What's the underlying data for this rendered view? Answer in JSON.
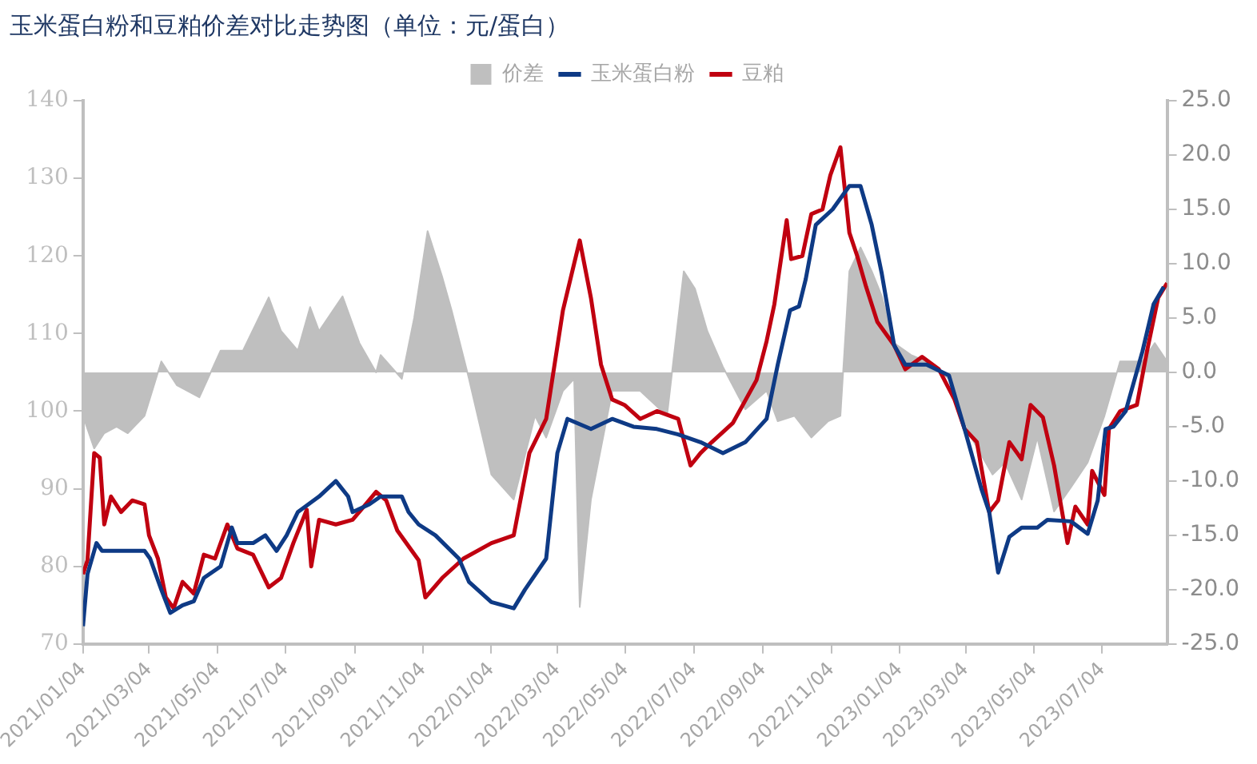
{
  "chart_data": {
    "type": "line",
    "title": "玉米蛋白粉和豆粕价差对比走势图（单位：元/蛋白）",
    "legend": "top",
    "grid": false,
    "marker": "none",
    "line_style": "solid",
    "xlim": [
      "2021-01-04",
      "2023-08-31"
    ],
    "xticks": [
      {
        "value": "2021-01-04",
        "label": "2021/01/04"
      },
      {
        "value": "2021-03-04",
        "label": "2021/03/04"
      },
      {
        "value": "2021-05-04",
        "label": "2021/05/04"
      },
      {
        "value": "2021-07-04",
        "label": "2021/07/04"
      },
      {
        "value": "2021-09-04",
        "label": "2021/09/04"
      },
      {
        "value": "2021-11-04",
        "label": "2021/11/04"
      },
      {
        "value": "2022-01-04",
        "label": "2022/01/04"
      },
      {
        "value": "2022-03-04",
        "label": "2022/03/04"
      },
      {
        "value": "2022-05-04",
        "label": "2022/05/04"
      },
      {
        "value": "2022-07-04",
        "label": "2022/07/04"
      },
      {
        "value": "2022-09-04",
        "label": "2022/09/04"
      },
      {
        "value": "2022-11-04",
        "label": "2022/11/04"
      },
      {
        "value": "2023-01-04",
        "label": "2023/01/04"
      },
      {
        "value": "2023-03-04",
        "label": "2023/03/04"
      },
      {
        "value": "2023-05-04",
        "label": "2023/05/04"
      },
      {
        "value": "2023-07-04",
        "label": "2023/07/04"
      }
    ],
    "ylim": [
      70,
      140
    ],
    "yticks": [
      70,
      80,
      90,
      100,
      110,
      120,
      130,
      140
    ],
    "y2lim": [
      -25,
      25
    ],
    "y2ticks": [
      {
        "value": -25,
        "label": "-25.0"
      },
      {
        "value": -20,
        "label": "-20.0"
      },
      {
        "value": -15,
        "label": "-15.0"
      },
      {
        "value": -10,
        "label": "-10.0"
      },
      {
        "value": -5,
        "label": "-5.0"
      },
      {
        "value": 0,
        "label": "0.0"
      },
      {
        "value": 5,
        "label": "5.0"
      },
      {
        "value": 10,
        "label": "10.0"
      },
      {
        "value": 15,
        "label": "15.0"
      },
      {
        "value": 20,
        "label": "20.0"
      },
      {
        "value": 25,
        "label": "25.0"
      }
    ],
    "series": [
      {
        "name": "价差",
        "type": "area",
        "axis": "y2",
        "color": "#bfbfbf",
        "x": [
          "2021-01-04",
          "2021-01-14",
          "2021-01-23",
          "2021-02-03",
          "2021-02-13",
          "2021-02-28",
          "2021-03-15",
          "2021-03-29",
          "2021-04-18",
          "2021-05-07",
          "2021-05-27",
          "2021-06-19",
          "2021-06-30",
          "2021-07-15",
          "2021-07-26",
          "2021-08-03",
          "2021-08-24",
          "2021-09-08",
          "2021-09-23",
          "2021-09-27",
          "2021-10-16",
          "2021-10-27",
          "2021-11-08",
          "2021-11-21",
          "2021-11-30",
          "2021-12-15",
          "2022-01-04",
          "2022-01-24",
          "2022-02-12",
          "2022-02-22",
          "2022-03-09",
          "2022-03-19",
          "2022-03-24",
          "2022-04-03",
          "2022-04-22",
          "2022-05-17",
          "2022-06-10",
          "2022-06-25",
          "2022-07-05",
          "2022-07-16",
          "2022-07-30",
          "2022-08-19",
          "2022-09-07",
          "2022-09-17",
          "2022-10-02",
          "2022-10-17",
          "2022-11-01",
          "2022-11-12",
          "2022-11-20",
          "2022-11-30",
          "2022-12-10",
          "2022-12-19",
          "2022-12-30",
          "2023-01-14",
          "2023-01-28",
          "2023-02-17",
          "2023-03-09",
          "2023-03-28",
          "2023-04-08",
          "2023-04-23",
          "2023-05-07",
          "2023-05-22",
          "2023-06-06",
          "2023-06-21",
          "2023-07-06",
          "2023-07-20",
          "2023-08-09",
          "2023-08-20",
          "2023-08-31"
        ],
        "values": [
          -4,
          -7,
          -5.6,
          -5,
          -5.6,
          -4,
          1,
          -1.2,
          -2.3,
          2,
          2,
          6.9,
          3.8,
          2,
          6,
          3.8,
          7,
          2.7,
          0,
          1.6,
          -0.6,
          5,
          13,
          8.8,
          5.5,
          -0.6,
          -9.4,
          -11.7,
          -4,
          -6,
          -1.7,
          -0.6,
          -21.6,
          -11.7,
          -1.7,
          -1.7,
          -4,
          9.3,
          7.7,
          3.8,
          0.5,
          -3.4,
          -1.7,
          -4.5,
          -4,
          -6,
          -4.5,
          -4,
          9.3,
          11.5,
          9.3,
          7,
          2.7,
          1.6,
          1,
          -0.6,
          -6,
          -9.4,
          -8.3,
          -11.7,
          -6,
          -12.8,
          -10.6,
          -8.3,
          -4,
          1,
          1,
          2.7,
          1
        ]
      },
      {
        "name": "玉米蛋白粉",
        "color": "#0e3a85",
        "x": [
          "2021-01-04",
          "2021-01-08",
          "2021-01-16",
          "2021-01-21",
          "2021-02-28",
          "2021-03-05",
          "2021-03-15",
          "2021-03-23",
          "2021-04-03",
          "2021-04-13",
          "2021-04-22",
          "2021-05-07",
          "2021-05-17",
          "2021-05-22",
          "2021-06-05",
          "2021-06-16",
          "2021-06-26",
          "2021-07-05",
          "2021-07-15",
          "2021-08-03",
          "2021-08-18",
          "2021-08-29",
          "2021-09-02",
          "2021-09-17",
          "2021-09-27",
          "2021-10-16",
          "2021-10-22",
          "2021-10-31",
          "2021-11-15",
          "2021-12-06",
          "2021-12-15",
          "2022-01-04",
          "2022-01-24",
          "2022-02-03",
          "2022-02-22",
          "2022-03-04",
          "2022-03-13",
          "2022-04-03",
          "2022-04-22",
          "2022-05-11",
          "2022-06-01",
          "2022-06-20",
          "2022-07-10",
          "2022-07-30",
          "2022-08-19",
          "2022-09-07",
          "2022-09-17",
          "2022-09-28",
          "2022-10-06",
          "2022-10-12",
          "2022-10-21",
          "2022-11-05",
          "2022-11-15",
          "2022-11-20",
          "2022-11-30",
          "2022-12-10",
          "2022-12-19",
          "2022-12-30",
          "2023-01-09",
          "2023-01-28",
          "2023-02-17",
          "2023-03-03",
          "2023-03-18",
          "2023-03-25",
          "2023-04-02",
          "2023-04-12",
          "2023-04-23",
          "2023-05-07",
          "2023-05-16",
          "2023-06-06",
          "2023-06-21",
          "2023-06-30",
          "2023-07-07",
          "2023-07-14",
          "2023-07-25",
          "2023-08-09",
          "2023-08-19",
          "2023-08-28"
        ],
        "values": [
          72.3,
          79,
          83,
          82,
          82,
          81,
          77,
          74,
          75,
          75.5,
          78.5,
          80,
          85,
          83,
          83,
          84,
          82,
          84,
          87,
          89,
          91,
          89,
          87,
          88,
          89,
          89,
          87,
          85.4,
          84,
          81,
          78,
          75.4,
          74.6,
          77,
          81,
          94.6,
          99,
          97.7,
          99,
          98,
          97.7,
          97,
          96,
          94.6,
          96,
          99,
          106,
          113,
          113.5,
          117,
          124,
          126,
          128,
          129,
          129,
          124,
          117.7,
          108.5,
          106,
          106,
          104.6,
          97.7,
          90,
          87,
          79.2,
          83.8,
          85,
          85,
          86,
          85.8,
          84.2,
          88.5,
          97.7,
          98,
          100,
          107.7,
          113.8,
          116
        ]
      },
      {
        "name": "豆粕",
        "color": "#c00010",
        "x": [
          "2021-01-04",
          "2021-01-08",
          "2021-01-14",
          "2021-01-19",
          "2021-01-23",
          "2021-01-29",
          "2021-02-07",
          "2021-02-17",
          "2021-02-28",
          "2021-03-04",
          "2021-03-12",
          "2021-03-19",
          "2021-03-26",
          "2021-04-03",
          "2021-04-13",
          "2021-04-22",
          "2021-05-02",
          "2021-05-13",
          "2021-05-22",
          "2021-06-05",
          "2021-06-19",
          "2021-06-30",
          "2021-07-11",
          "2021-07-23",
          "2021-07-27",
          "2021-08-03",
          "2021-08-18",
          "2021-09-02",
          "2021-09-12",
          "2021-09-23",
          "2021-10-02",
          "2021-10-12",
          "2021-10-31",
          "2021-11-06",
          "2021-11-21",
          "2021-12-10",
          "2022-01-04",
          "2022-01-24",
          "2022-02-07",
          "2022-02-22",
          "2022-03-09",
          "2022-03-19",
          "2022-03-24",
          "2022-04-03",
          "2022-04-12",
          "2022-04-22",
          "2022-05-03",
          "2022-05-17",
          "2022-06-01",
          "2022-06-20",
          "2022-07-01",
          "2022-07-10",
          "2022-07-20",
          "2022-08-08",
          "2022-08-29",
          "2022-09-07",
          "2022-09-14",
          "2022-09-25",
          "2022-09-29",
          "2022-10-09",
          "2022-10-17",
          "2022-10-27",
          "2022-11-03",
          "2022-11-12",
          "2022-11-20",
          "2022-11-27",
          "2022-12-05",
          "2022-12-15",
          "2022-12-30",
          "2023-01-09",
          "2023-01-24",
          "2023-02-08",
          "2023-02-22",
          "2023-03-03",
          "2023-03-14",
          "2023-03-25",
          "2023-04-02",
          "2023-04-12",
          "2023-04-23",
          "2023-05-01",
          "2023-05-12",
          "2023-05-22",
          "2023-06-03",
          "2023-06-10",
          "2023-06-21",
          "2023-06-25",
          "2023-07-06",
          "2023-07-10",
          "2023-07-20",
          "2023-08-04",
          "2023-08-13",
          "2023-08-23",
          "2023-08-31"
        ],
        "values": [
          79,
          80.8,
          94.6,
          94,
          85.4,
          89,
          87,
          88.5,
          88,
          84,
          81,
          76,
          74.6,
          78,
          76.5,
          81.5,
          81,
          85.4,
          82.3,
          81.5,
          77.3,
          78.5,
          83,
          87.3,
          80,
          86,
          85.4,
          86,
          87.7,
          89.6,
          88.5,
          84.6,
          80.8,
          76,
          78.5,
          81,
          83,
          84,
          94.6,
          99,
          113,
          119,
          122,
          114.6,
          106,
          101.5,
          100.8,
          99,
          100,
          99,
          93,
          94.6,
          96,
          98.5,
          104,
          109,
          113.8,
          124.6,
          119.6,
          120,
          125.4,
          126,
          130.4,
          134,
          123,
          120,
          116,
          111.5,
          108.5,
          105.4,
          107,
          105.4,
          101.5,
          97.7,
          96,
          87,
          88.5,
          96,
          93.8,
          100.8,
          99.2,
          93,
          83,
          87.7,
          85.4,
          92.3,
          89.2,
          97.7,
          100,
          100.8,
          107.7,
          114.6,
          116.5
        ]
      }
    ]
  }
}
